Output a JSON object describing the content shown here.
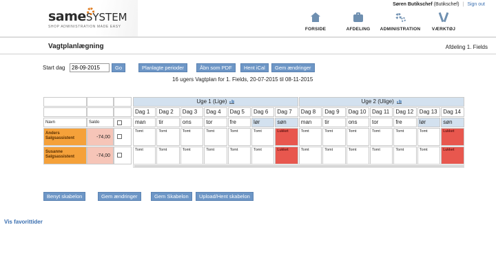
{
  "header": {
    "logo_word_a": "same",
    "logo_word_b": "SYSTEM",
    "logo_tagline": "SHOP ADMINISTRATION MADE EASY",
    "user_name": "Søren Butikschef",
    "user_role": "(Butikschef)",
    "separator": "|",
    "signout_label": "Sign out",
    "nav": [
      {
        "label": "FORSIDE",
        "icon": "home-icon"
      },
      {
        "label": "AFDELING",
        "icon": "briefcase-icon"
      },
      {
        "label": "ADMINISTRATION",
        "icon": "gears-icon"
      },
      {
        "label": "VÆRKTØJ",
        "icon": "tools-icon"
      }
    ]
  },
  "page": {
    "title": "Vagtplanlægning",
    "department": "Afdeling 1. Fields"
  },
  "toolbar": {
    "start_label": "Start dag",
    "start_value": "28-09-2015",
    "go_label": "Go",
    "buttons": [
      "Planlagte perioder",
      "Åbn som PDF",
      "Hent iCal",
      "Gem ændringer"
    ]
  },
  "subtitle": "16 ugers Vagtplan for 1. Fields, 20-07-2015 til 08-11-2015",
  "grid": {
    "name_header": "Navn",
    "saldo_header": "Saldo",
    "weeks": [
      {
        "label": "Uge 1 (Lige)"
      },
      {
        "label": "Uge 2 (Ulige)"
      }
    ],
    "days": [
      "Dag 1",
      "Dag 2",
      "Dag 3",
      "Dag 4",
      "Dag 5",
      "Dag 6",
      "Dag 7",
      "Dag 8",
      "Dag 9",
      "Dag 10",
      "Dag 11",
      "Dag 12",
      "Dag 13",
      "Dag 14"
    ],
    "day_names": [
      "man",
      "tir",
      "ons",
      "tor",
      "fre",
      "lør",
      "søn",
      "man",
      "tir",
      "ons",
      "tor",
      "fre",
      "lør",
      "søn"
    ],
    "employees": [
      {
        "name_line1": "Anders",
        "name_line2": "Salgsassistent",
        "saldo": "-74,00",
        "shifts": [
          "Tomt",
          "Tomt",
          "Tomt",
          "Tomt",
          "Tomt",
          "Tomt",
          "Lukket",
          "Tomt",
          "Tomt",
          "Tomt",
          "Tomt",
          "Tomt",
          "Tomt",
          "Lukket"
        ]
      },
      {
        "name_line1": "Susanne",
        "name_line2": "Salgsassistent",
        "saldo": "-74,00",
        "shifts": [
          "Tomt",
          "Tomt",
          "Tomt",
          "Tomt",
          "Tomt",
          "Tomt",
          "Lukket",
          "Tomt",
          "Tomt",
          "Tomt",
          "Tomt",
          "Tomt",
          "Tomt",
          "Lukket"
        ]
      }
    ]
  },
  "bottom_buttons": [
    "Benyt skabelon",
    "Gem ændringer",
    "Gem Skabelon",
    "Upload/Hent skabelon"
  ],
  "favorites_label": "Vis favorittider",
  "colors": {
    "accent_button": "#6d96c6",
    "week_header": "#d3e1ef",
    "employee_name": "#f5a13a",
    "saldo_negative": "#f6c5b8",
    "closed_shift": "#e8574e"
  }
}
